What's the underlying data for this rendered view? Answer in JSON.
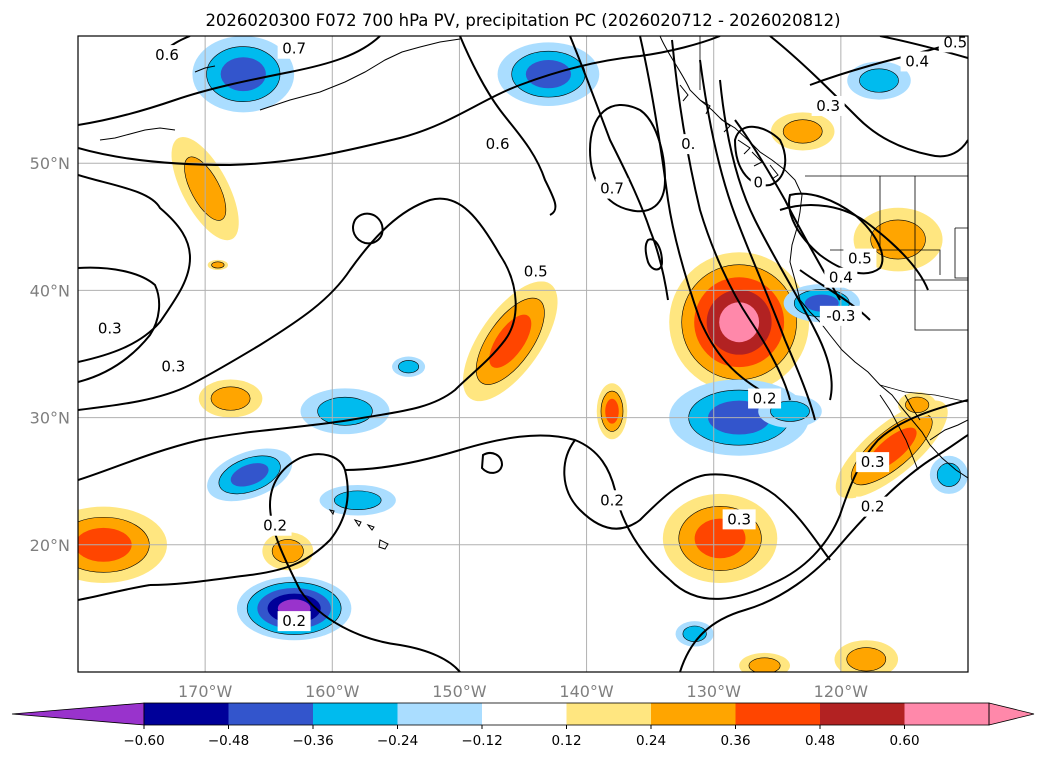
{
  "title": "2026020300 F072 700 hPa PV, precipitation PC (2026020712 - 2026020812)",
  "map": {
    "lon_range": [
      -180,
      -110
    ],
    "lat_range": [
      10,
      60
    ],
    "lon_ticks": [
      {
        "lon": -170,
        "label": "170°W"
      },
      {
        "lon": -160,
        "label": "160°W"
      },
      {
        "lon": -150,
        "label": "150°W"
      },
      {
        "lon": -140,
        "label": "140°W"
      },
      {
        "lon": -130,
        "label": "130°W"
      },
      {
        "lon": -120,
        "label": "120°W"
      }
    ],
    "lat_ticks": [
      {
        "lat": 20,
        "label": "20°N"
      },
      {
        "lat": 30,
        "label": "30°N"
      },
      {
        "lat": 40,
        "label": "40°N"
      },
      {
        "lat": 50,
        "label": "50°N"
      }
    ],
    "grid": true
  },
  "colorbar": {
    "bounds": [
      -0.72,
      -0.6,
      -0.48,
      -0.36,
      -0.24,
      -0.12,
      0.12,
      0.24,
      0.36,
      0.48,
      0.6,
      0.72
    ],
    "colors": [
      "#9933cc",
      "#000099",
      "#3355cc",
      "#00bbee",
      "#aaddff",
      "#ffffff",
      "#ffe680",
      "#ffa500",
      "#ff4500",
      "#b22222",
      "#ff88aa"
    ],
    "tick_labels": [
      "−0.60",
      "−0.48",
      "−0.36",
      "−0.24",
      "−0.12",
      "0.12",
      "0.24",
      "0.36",
      "0.48",
      "0.60"
    ],
    "tick_values": [
      -0.6,
      -0.48,
      -0.36,
      -0.24,
      -0.12,
      0.12,
      0.24,
      0.36,
      0.48,
      0.6
    ]
  },
  "pc_blobs": [
    {
      "lon": -163,
      "lat": 15,
      "rx": 4.5,
      "ry": 2.5,
      "value": -0.62
    },
    {
      "lon": -146,
      "lat": 36,
      "rx": 5.5,
      "ry": 2.4,
      "rot": -55,
      "value": 0.42
    },
    {
      "lon": -128,
      "lat": 37.5,
      "rx": 5.5,
      "ry": 5.5,
      "value": 0.62
    },
    {
      "lon": -128,
      "lat": 30,
      "rx": 5.5,
      "ry": 3,
      "value": -0.42
    },
    {
      "lon": -129.5,
      "lat": 20.5,
      "rx": 4.5,
      "ry": 3.5,
      "value": 0.4
    },
    {
      "lon": -178,
      "lat": 20,
      "rx": 5,
      "ry": 3,
      "value": 0.4
    },
    {
      "lon": -170,
      "lat": 48,
      "rx": 4.5,
      "ry": 1.8,
      "rot": 62,
      "value": 0.33
    },
    {
      "lon": -143,
      "lat": 57,
      "rx": 4,
      "ry": 2.5,
      "value": -0.42
    },
    {
      "lon": -167,
      "lat": 57,
      "rx": 4,
      "ry": 3,
      "value": -0.4
    },
    {
      "lon": -159,
      "lat": 30.5,
      "rx": 3.5,
      "ry": 1.8,
      "value": -0.3
    },
    {
      "lon": -166.5,
      "lat": 25.5,
      "rx": 3.5,
      "ry": 1.8,
      "rot": -20,
      "value": -0.38
    },
    {
      "lon": -158,
      "lat": 23.5,
      "rx": 3,
      "ry": 1.2,
      "value": -0.3
    },
    {
      "lon": -116,
      "lat": 27.5,
      "rx": 5.5,
      "ry": 2,
      "rot": -40,
      "value": 0.38
    },
    {
      "lon": -115.5,
      "lat": 44,
      "rx": 3.5,
      "ry": 2.5,
      "value": 0.3
    },
    {
      "lon": -121.5,
      "lat": 39,
      "rx": 3,
      "ry": 1.5,
      "value": -0.38
    },
    {
      "lon": -117,
      "lat": 56.5,
      "rx": 2.5,
      "ry": 1.5,
      "value": -0.3
    },
    {
      "lon": -123,
      "lat": 52.5,
      "rx": 2.5,
      "ry": 1.5,
      "value": 0.3
    },
    {
      "lon": -168,
      "lat": 31.5,
      "rx": 2.5,
      "ry": 1.5,
      "value": 0.3
    },
    {
      "lon": -163.5,
      "lat": 19.5,
      "rx": 2,
      "ry": 1.5,
      "value": 0.3
    },
    {
      "lon": -138,
      "lat": 30.5,
      "rx": 1.2,
      "ry": 2.2,
      "value": 0.36
    },
    {
      "lon": -118,
      "lat": 11,
      "rx": 2.5,
      "ry": 1.5,
      "value": 0.3
    },
    {
      "lon": -124,
      "lat": 30.5,
      "rx": 2.5,
      "ry": 1.3,
      "value": -0.3
    },
    {
      "lon": -154,
      "lat": 34,
      "rx": 1.3,
      "ry": 0.8,
      "value": -0.25
    },
    {
      "lon": -131.5,
      "lat": 13,
      "rx": 1.5,
      "ry": 1,
      "value": -0.25
    },
    {
      "lon": -111.5,
      "lat": 25.5,
      "rx": 1.5,
      "ry": 1.5,
      "value": -0.25
    },
    {
      "lon": -114,
      "lat": 31,
      "rx": 1.5,
      "ry": 1,
      "value": 0.3
    },
    {
      "lon": -126,
      "lat": 10.5,
      "rx": 2,
      "ry": 1,
      "value": 0.3
    },
    {
      "lon": -169,
      "lat": 42,
      "rx": 0.8,
      "ry": 0.4,
      "value": 0.25
    }
  ],
  "pv_labels": [
    {
      "text": "0.6",
      "lon": -173,
      "lat": 58.5
    },
    {
      "text": "0.7",
      "lon": -163,
      "lat": 59
    },
    {
      "text": "0.6",
      "lon": -147,
      "lat": 51.5
    },
    {
      "text": "0.7",
      "lon": -138,
      "lat": 48
    },
    {
      "text": "0.",
      "lon": -132,
      "lat": 51.5
    },
    {
      "text": "0.5",
      "lon": -144,
      "lat": 41.5
    },
    {
      "text": "0.3",
      "lon": -177.5,
      "lat": 37
    },
    {
      "text": "0.3",
      "lon": -172.5,
      "lat": 34
    },
    {
      "text": "0.2",
      "lon": -164.5,
      "lat": 21.5
    },
    {
      "text": "0.2",
      "lon": -163,
      "lat": 14
    },
    {
      "text": "0.2",
      "lon": -138,
      "lat": 23.5
    },
    {
      "text": "0.3",
      "lon": -128,
      "lat": 22
    },
    {
      "text": "0.2",
      "lon": -126,
      "lat": 31.5
    },
    {
      "text": "0.3",
      "lon": -117.5,
      "lat": 26.5
    },
    {
      "text": "0.2",
      "lon": -117.5,
      "lat": 23
    },
    {
      "text": "0.5",
      "lon": -118.5,
      "lat": 42.5
    },
    {
      "text": "0.4",
      "lon": -120,
      "lat": 41
    },
    {
      "text": "-0.3",
      "lon": -120,
      "lat": 38
    },
    {
      "text": "0.3",
      "lon": -121,
      "lat": 54.5
    },
    {
      "text": "0.4",
      "lon": -114,
      "lat": 58
    },
    {
      "text": "0.5",
      "lon": -111,
      "lat": 59.5
    },
    {
      "text": "0",
      "lon": -126.5,
      "lat": 48.5
    }
  ]
}
